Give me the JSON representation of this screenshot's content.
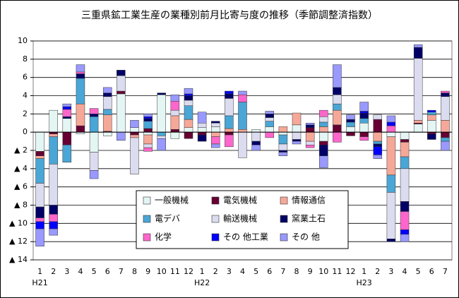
{
  "chart_data": {
    "type": "stacked-bar",
    "title": "三重県鉱工業生産の業種別前月比寄与度の推移（季節調整済指数）",
    "categories": [
      "1",
      "2",
      "3",
      "4",
      "5",
      "6",
      "7",
      "8",
      "9",
      "10",
      "11",
      "12",
      "1",
      "2",
      "3",
      "4",
      "5",
      "6",
      "7",
      "8",
      "9",
      "10",
      "11",
      "12",
      "1",
      "2",
      "3",
      "4",
      "5",
      "6",
      "7"
    ],
    "groups": [
      "H21",
      null,
      null,
      null,
      null,
      null,
      null,
      null,
      null,
      null,
      null,
      null,
      "H22",
      null,
      null,
      null,
      null,
      null,
      null,
      null,
      null,
      null,
      null,
      null,
      "H23",
      null,
      null,
      null,
      null,
      null,
      null
    ],
    "ylim": [
      -14,
      10
    ],
    "yticks": [
      {
        "value": -14,
        "label": "▲ 14"
      },
      {
        "value": -12,
        "label": "▲ 12"
      },
      {
        "value": -10,
        "label": "▲ 10"
      },
      {
        "value": -8,
        "label": "▲ 8"
      },
      {
        "value": -6,
        "label": "▲ 6"
      },
      {
        "value": -4,
        "label": "▲ 4"
      },
      {
        "value": -2,
        "label": "▲ 2"
      },
      0,
      2,
      4,
      6,
      8,
      10
    ],
    "grid": true,
    "series": [
      {
        "name": "一般機械",
        "color": "#e4f6f4",
        "values": [
          -2.1,
          2.4,
          1.5,
          -0.2,
          -2.2,
          -0.4,
          4.2,
          0.5,
          -0.3,
          4.1,
          -0.7,
          0.5,
          0.5,
          0.6,
          0,
          0,
          0.3,
          0.6,
          -0.3,
          0.8,
          0,
          -1.0,
          0,
          0.6,
          1.0,
          0,
          -0.5,
          -0.8,
          0.9,
          1.3,
          0
        ]
      },
      {
        "name": "電気機械",
        "color": "#660033",
        "values": [
          -0.5,
          -0.2,
          -1.4,
          0.7,
          0,
          0.1,
          0.3,
          -0.3,
          0.4,
          0,
          0.3,
          -0.7,
          -0.3,
          0,
          -0.3,
          0,
          0,
          0,
          0,
          0,
          0.5,
          -0.4,
          0.8,
          -0.4,
          -0.5,
          1.4,
          0,
          -0.3,
          0.1,
          -0.2,
          -0.6
        ]
      },
      {
        "name": "情報通信",
        "color": "#f6a898",
        "values": [
          -0.3,
          -0.3,
          0,
          2.4,
          0,
          1.8,
          0,
          -0.3,
          -1.0,
          0,
          1.5,
          0.9,
          0,
          -0.5,
          0.4,
          0.3,
          0,
          0,
          0.6,
          1.3,
          -1.0,
          0.6,
          1.6,
          0,
          0,
          -1.0,
          -4.2,
          -1.6,
          0.3,
          0.6,
          1.3
        ]
      },
      {
        "name": "電デバ",
        "color": "#4aa6d6",
        "values": [
          -2.7,
          -3.0,
          -1.9,
          2.8,
          1.7,
          0.6,
          0,
          0,
          0.8,
          -0.4,
          0,
          1.5,
          0,
          0,
          1.4,
          3.0,
          0,
          0.6,
          -1.0,
          0,
          0,
          0.5,
          0.7,
          0.5,
          0.5,
          -0.3,
          -1.9,
          -1.3,
          0,
          0.3,
          -0.4
        ]
      },
      {
        "name": "輸送機械",
        "color": "#dcdcf0",
        "values": [
          -2.6,
          -4.5,
          0,
          0,
          -2.0,
          1.4,
          1.7,
          -4.0,
          -0.4,
          -0.3,
          0.6,
          0.6,
          0.5,
          0.4,
          1.9,
          -2.8,
          -1.0,
          0.4,
          -0.7,
          -0.8,
          -0.4,
          0.6,
          1.0,
          0,
          0,
          0.5,
          -5.1,
          -3.6,
          6.8,
          0,
          2.6
        ]
      },
      {
        "name": "窯業土石",
        "color": "#000066",
        "values": [
          -1.2,
          -1.0,
          0.2,
          0.5,
          0.3,
          0.4,
          0.6,
          0,
          0.3,
          0.2,
          0,
          0.5,
          -0.7,
          0.2,
          0.5,
          0,
          -0.4,
          0.4,
          -0.2,
          -0.2,
          0.3,
          -1.2,
          0.8,
          0.3,
          0.6,
          -0.3,
          -0.3,
          -1.1,
          1.2,
          -0.6,
          0.4
        ]
      },
      {
        "name": "化学",
        "color": "#ff66cc",
        "values": [
          -0.4,
          -0.8,
          0.8,
          0.2,
          0.6,
          0,
          0,
          0,
          -0.4,
          0,
          1.0,
          0,
          0,
          -0.8,
          -1.3,
          0.8,
          0,
          -0.6,
          0,
          0,
          -0.3,
          0.7,
          -1.1,
          0,
          -0.4,
          0,
          0.7,
          -2.0,
          0,
          0,
          0.2
        ]
      },
      {
        "name": "その 他工業",
        "color": "#0000ff",
        "values": [
          -0.8,
          -0.8,
          0.3,
          0,
          0,
          0,
          0,
          0,
          0.2,
          0,
          0,
          0.2,
          0,
          0,
          0.3,
          0,
          0,
          0,
          0,
          0,
          0,
          0,
          0,
          0,
          0.2,
          -0.9,
          0.4,
          -0.5,
          0,
          0.2,
          0
        ]
      },
      {
        "name": "その 他",
        "color": "#9999ff",
        "values": [
          -1.9,
          -0.7,
          0.3,
          0.8,
          -0.9,
          0.6,
          -0.9,
          0.8,
          0.3,
          -1.3,
          0.7,
          0.6,
          1.2,
          -0.4,
          0,
          0.4,
          -0.6,
          0.3,
          -0.4,
          -0.3,
          0.2,
          -1.3,
          2.5,
          0.5,
          1.0,
          -0.4,
          0.7,
          -0.8,
          0.3,
          0,
          -1.0
        ]
      }
    ]
  }
}
